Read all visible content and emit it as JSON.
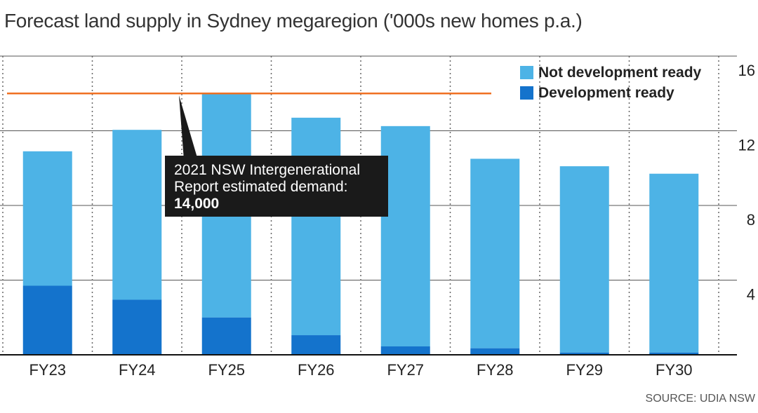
{
  "title": "Forecast land supply in Sydney megaregion ('000s new homes p.a.)",
  "source": "SOURCE: UDIA NSW",
  "colors": {
    "not_ready": "#4db3e6",
    "ready": "#1473cc",
    "demand_line": "#f07022",
    "annotation_bg": "#1a1a1a",
    "annotation_text": "#ffffff"
  },
  "annotation": {
    "line1": "2021 NSW Intergenerational",
    "line2": "Report estimated demand:",
    "line3": "14,000"
  },
  "chart_data": {
    "type": "bar",
    "stacked": true,
    "categories": [
      "FY23",
      "FY24",
      "FY25",
      "FY26",
      "FY27",
      "FY28",
      "FY29",
      "FY30"
    ],
    "series": [
      {
        "name": "Development ready",
        "values": [
          3.7,
          2.95,
          2.0,
          1.05,
          0.45,
          0.35,
          0.12,
          0.12
        ]
      },
      {
        "name": "Not development ready",
        "values": [
          7.2,
          9.1,
          12.0,
          11.65,
          11.8,
          10.15,
          9.98,
          9.58
        ]
      }
    ],
    "legend": [
      "Not development ready",
      "Development ready"
    ],
    "reference_line": {
      "label": "2021 NSW Intergenerational Report estimated demand: 14,000",
      "value": 14
    },
    "yticks": [
      4,
      8,
      12,
      16
    ],
    "ylim": [
      0,
      16
    ],
    "title": "Forecast land supply in Sydney megaregion ('000s new homes p.a.)",
    "xlabel": "",
    "ylabel": ""
  }
}
